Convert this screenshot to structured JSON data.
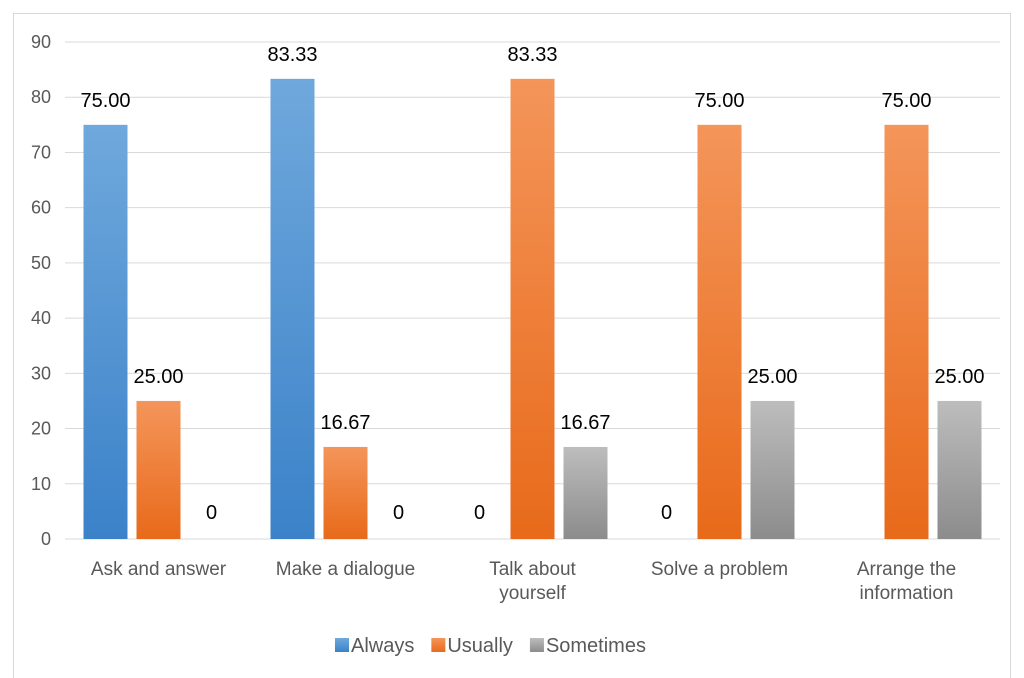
{
  "chart_data": {
    "type": "bar",
    "categories": [
      [
        "Ask and answer"
      ],
      [
        "Make a dialogue"
      ],
      [
        "Talk about",
        "yourself"
      ],
      [
        "Solve a problem"
      ],
      [
        "Arrange the",
        "information"
      ]
    ],
    "series": [
      {
        "name": "Always",
        "values": [
          75,
          83.33,
          0,
          0,
          0
        ],
        "labels": [
          "75.00",
          "83.33",
          "0",
          "0",
          null
        ],
        "color": "#4a90d9"
      },
      {
        "name": "Usually",
        "values": [
          25,
          16.67,
          83.33,
          75,
          75
        ],
        "labels": [
          "25.00",
          "16.67",
          "83.33",
          "75.00",
          "75.00"
        ],
        "color": "#ef7d31"
      },
      {
        "name": "Sometimes",
        "values": [
          0,
          0,
          16.67,
          25,
          25
        ],
        "labels": [
          "0",
          "0",
          "16.67",
          "25.00",
          "25.00"
        ],
        "color": "#a5a5a5"
      }
    ],
    "ylim": [
      0,
      90
    ],
    "yticks": [
      0,
      10,
      20,
      30,
      40,
      50,
      60,
      70,
      80,
      90
    ],
    "grid": true,
    "legend": "bottom-center"
  }
}
